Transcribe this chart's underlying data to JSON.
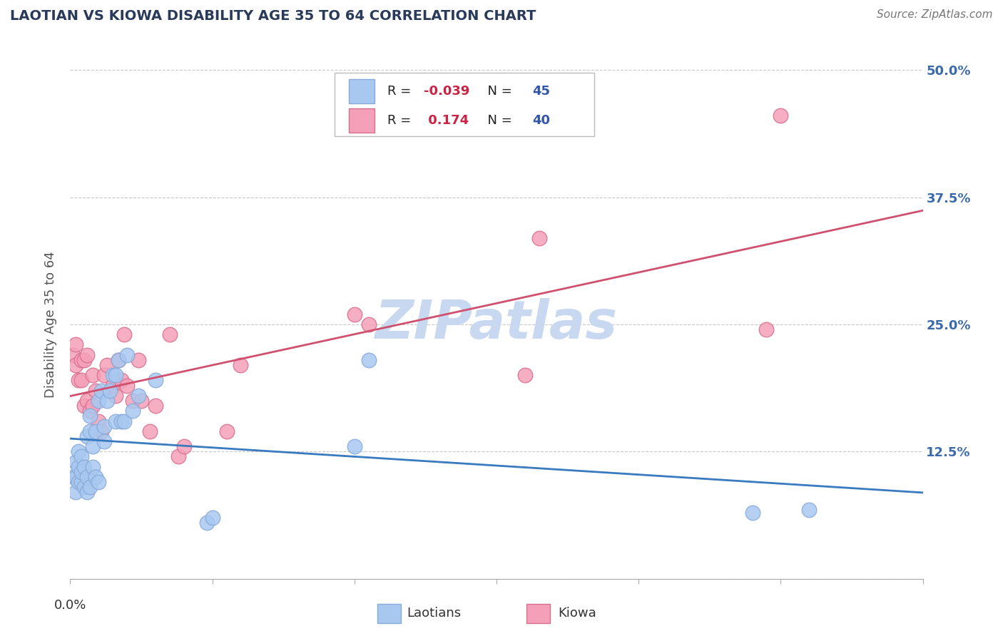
{
  "title": "LAOTIAN VS KIOWA DISABILITY AGE 35 TO 64 CORRELATION CHART",
  "source_text": "Source: ZipAtlas.com",
  "ylabel": "Disability Age 35 to 64",
  "xlim": [
    0.0,
    0.3
  ],
  "ylim": [
    0.0,
    0.5
  ],
  "yticks": [
    0.0,
    0.125,
    0.25,
    0.375,
    0.5
  ],
  "ytick_labels": [
    "",
    "12.5%",
    "25.0%",
    "37.5%",
    "50.0%"
  ],
  "background_color": "#ffffff",
  "grid_color": "#c8c8c8",
  "laotian_color": "#a8c8f0",
  "kiowa_color": "#f4a0b8",
  "laotian_edge_color": "#88aad8",
  "kiowa_edge_color": "#d87090",
  "trendline_laotian_color": "#3a7abf",
  "trendline_kiowa_color": "#d05070",
  "R_laotian": -0.039,
  "N_laotian": 45,
  "R_kiowa": 0.174,
  "N_kiowa": 40,
  "laotian_x": [
    0.001,
    0.002,
    0.002,
    0.002,
    0.003,
    0.003,
    0.003,
    0.004,
    0.004,
    0.004,
    0.005,
    0.005,
    0.006,
    0.006,
    0.006,
    0.007,
    0.007,
    0.007,
    0.008,
    0.008,
    0.009,
    0.009,
    0.01,
    0.01,
    0.011,
    0.012,
    0.012,
    0.013,
    0.014,
    0.015,
    0.016,
    0.016,
    0.017,
    0.018,
    0.019,
    0.02,
    0.022,
    0.024,
    0.03,
    0.048,
    0.05,
    0.1,
    0.105,
    0.24,
    0.26
  ],
  "laotian_y": [
    0.1,
    0.085,
    0.1,
    0.115,
    0.095,
    0.11,
    0.125,
    0.095,
    0.105,
    0.12,
    0.09,
    0.11,
    0.085,
    0.1,
    0.14,
    0.09,
    0.145,
    0.16,
    0.11,
    0.13,
    0.1,
    0.145,
    0.095,
    0.175,
    0.185,
    0.135,
    0.15,
    0.175,
    0.185,
    0.2,
    0.155,
    0.2,
    0.215,
    0.155,
    0.155,
    0.22,
    0.165,
    0.18,
    0.195,
    0.055,
    0.06,
    0.13,
    0.215,
    0.065,
    0.068
  ],
  "kiowa_x": [
    0.001,
    0.002,
    0.002,
    0.003,
    0.004,
    0.004,
    0.005,
    0.005,
    0.006,
    0.006,
    0.007,
    0.008,
    0.008,
    0.009,
    0.01,
    0.011,
    0.012,
    0.013,
    0.015,
    0.016,
    0.017,
    0.018,
    0.019,
    0.02,
    0.022,
    0.024,
    0.025,
    0.028,
    0.03,
    0.035,
    0.038,
    0.04,
    0.055,
    0.06,
    0.1,
    0.105,
    0.16,
    0.165,
    0.245,
    0.25
  ],
  "kiowa_y": [
    0.22,
    0.21,
    0.23,
    0.195,
    0.195,
    0.215,
    0.17,
    0.215,
    0.175,
    0.22,
    0.165,
    0.17,
    0.2,
    0.185,
    0.155,
    0.145,
    0.2,
    0.21,
    0.19,
    0.18,
    0.215,
    0.195,
    0.24,
    0.19,
    0.175,
    0.215,
    0.175,
    0.145,
    0.17,
    0.24,
    0.12,
    0.13,
    0.145,
    0.21,
    0.26,
    0.25,
    0.2,
    0.335,
    0.245,
    0.455
  ],
  "watermark_text": "ZIPatlas",
  "watermark_color": "#c8d8f0",
  "legend_R_color": "#cc2244",
  "legend_N_color": "#3355aa",
  "title_color": "#2a3a5a",
  "source_color": "#777777",
  "ylabel_color": "#555555",
  "tick_label_color": "#3a6aaa"
}
